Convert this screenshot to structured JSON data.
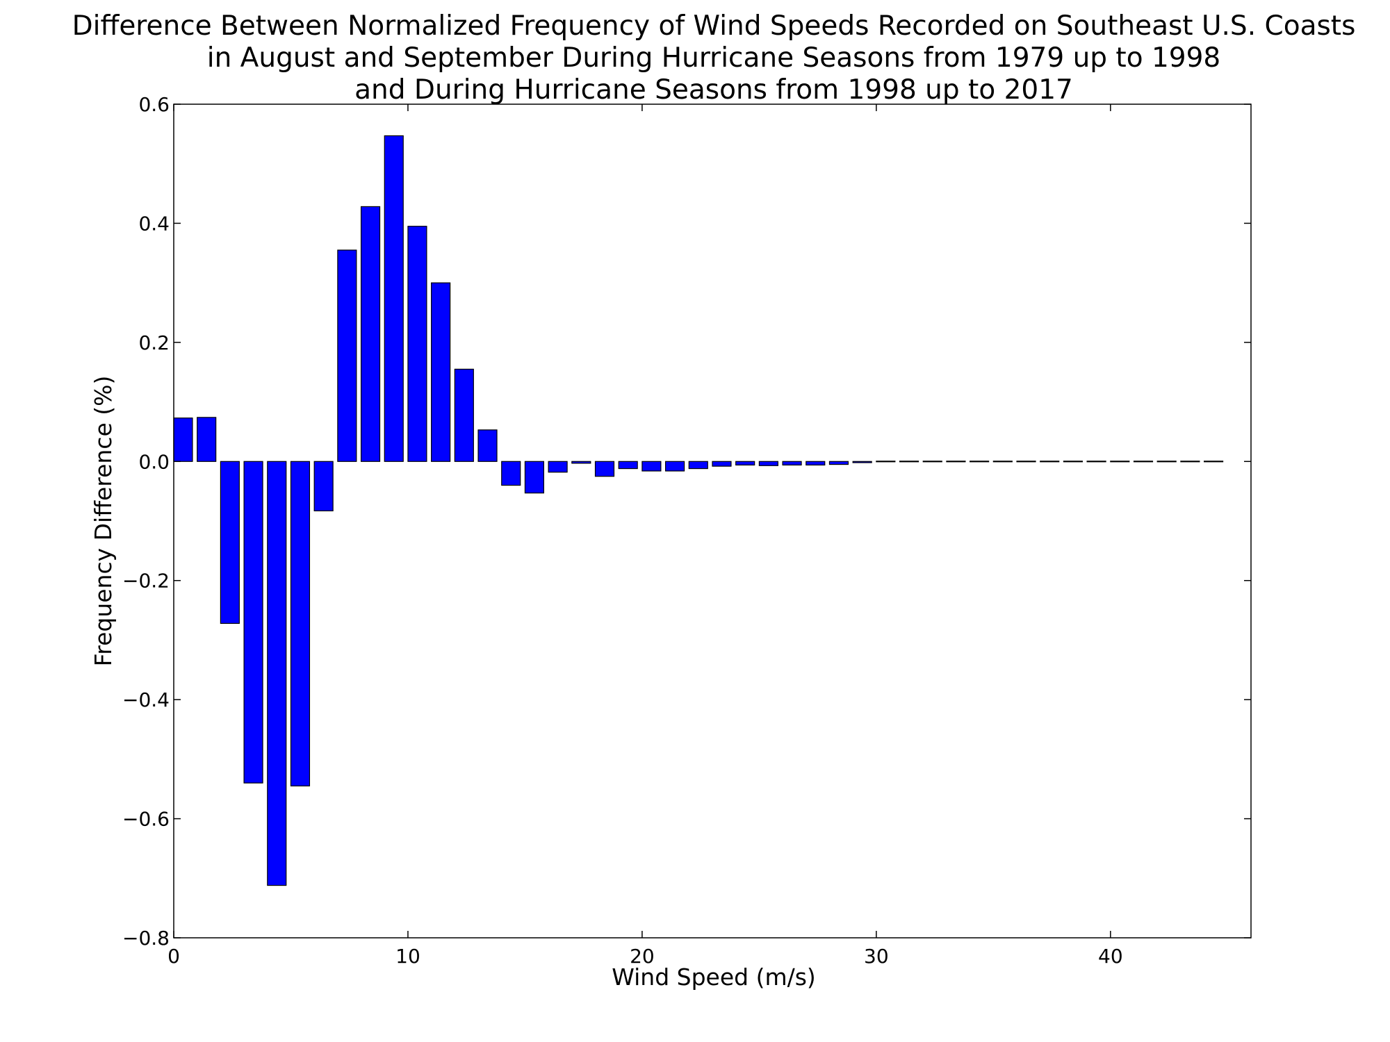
{
  "chart_data": {
    "type": "bar",
    "title": [
      "Difference Between Normalized Frequency of Wind Speeds Recorded on Southeast U.S. Coasts",
      "in August and September During Hurricane Seasons from 1979 up to 1998",
      "and During Hurricane Seasons from 1998 up to 2017"
    ],
    "xlabel": "Wind Speed (m/s)",
    "ylabel": "Frequency Difference (%)",
    "xlim": [
      0,
      46
    ],
    "ylim": [
      -0.8,
      0.6
    ],
    "xticks": [
      0,
      10,
      20,
      30,
      40
    ],
    "xtick_labels": [
      "0",
      "10",
      "20",
      "30",
      "40"
    ],
    "yticks": [
      -0.8,
      -0.6,
      -0.4,
      -0.2,
      0.0,
      0.2,
      0.4,
      0.6
    ],
    "ytick_labels": [
      "−0.8",
      "−0.6",
      "−0.4",
      "−0.2",
      "0.0",
      "0.2",
      "0.4",
      "0.6"
    ],
    "grid": false,
    "bar_width": 0.8,
    "bar_color": "#0000ff",
    "edge_color": "#000000",
    "x": [
      0,
      1,
      2,
      3,
      4,
      5,
      6,
      7,
      8,
      9,
      10,
      11,
      12,
      13,
      14,
      15,
      16,
      17,
      18,
      19,
      20,
      21,
      22,
      23,
      24,
      25,
      26,
      27,
      28,
      29,
      30,
      31,
      32,
      33,
      34,
      35,
      36,
      37,
      38,
      39,
      40,
      41,
      42,
      43,
      44
    ],
    "values": [
      0.073,
      0.074,
      -0.272,
      -0.54,
      -0.712,
      -0.545,
      -0.083,
      0.355,
      0.428,
      0.547,
      0.395,
      0.3,
      0.155,
      0.053,
      -0.04,
      -0.053,
      -0.018,
      -0.003,
      -0.025,
      -0.012,
      -0.016,
      -0.016,
      -0.012,
      -0.008,
      -0.006,
      -0.007,
      -0.006,
      -0.006,
      -0.005,
      -0.002,
      -0.001,
      -0.001,
      0.0,
      0.0,
      0.0,
      0.0,
      0.0,
      0.0,
      0.0,
      0.0,
      0.0,
      0.0,
      0.0,
      0.0,
      0.0
    ]
  }
}
